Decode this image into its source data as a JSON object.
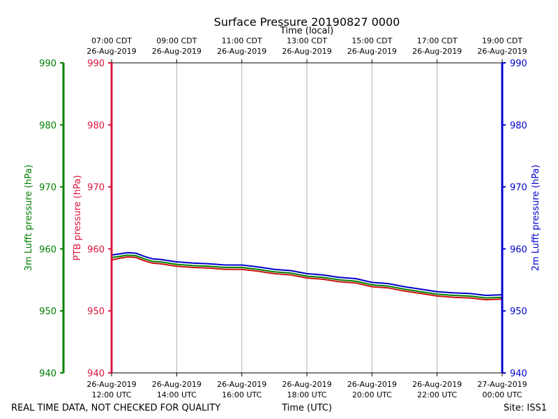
{
  "chart_data": {
    "type": "line",
    "title": "Surface Pressure 20190827 0000",
    "xlabel_bottom": "Time (UTC)",
    "xlabel_top": "Time (local)",
    "ylabel_left_outer": "3m Lufft pressure (hPa)",
    "ylabel_left_inner": "PTB pressure (hPa)",
    "ylabel_right": "2m Lufft pressure (hPa)",
    "ylim": [
      940,
      990
    ],
    "yticks": [
      "990",
      "980",
      "970",
      "960",
      "950",
      "940"
    ],
    "xlim_hours": [
      0,
      12
    ],
    "grid": true,
    "bottom_ticks": [
      {
        "hour": 0,
        "date": "26-Aug-2019",
        "time": "12:00 UTC"
      },
      {
        "hour": 2,
        "date": "26-Aug-2019",
        "time": "14:00 UTC"
      },
      {
        "hour": 4,
        "date": "26-Aug-2019",
        "time": "16:00 UTC"
      },
      {
        "hour": 6,
        "date": "26-Aug-2019",
        "time": "18:00 UTC"
      },
      {
        "hour": 8,
        "date": "26-Aug-2019",
        "time": "20:00 UTC"
      },
      {
        "hour": 10,
        "date": "26-Aug-2019",
        "time": "22:00 UTC"
      },
      {
        "hour": 12,
        "date": "27-Aug-2019",
        "time": "00:00 UTC"
      }
    ],
    "top_ticks": [
      {
        "hour": 0,
        "time": "07:00 CDT",
        "date": "26-Aug-2019"
      },
      {
        "hour": 2,
        "time": "09:00 CDT",
        "date": "26-Aug-2019"
      },
      {
        "hour": 4,
        "time": "11:00 CDT",
        "date": "26-Aug-2019"
      },
      {
        "hour": 6,
        "time": "13:00 CDT",
        "date": "26-Aug-2019"
      },
      {
        "hour": 8,
        "time": "15:00 CDT",
        "date": "26-Aug-2019"
      },
      {
        "hour": 10,
        "time": "17:00 CDT",
        "date": "26-Aug-2019"
      },
      {
        "hour": 12,
        "time": "19:00 CDT",
        "date": "26-Aug-2019"
      }
    ],
    "series": [
      {
        "name": "2m Lufft",
        "color": "#0000cc",
        "x": [
          0,
          0.25,
          0.5,
          0.75,
          1.0,
          1.25,
          1.5,
          1.75,
          2.0,
          2.5,
          3.0,
          3.5,
          4.0,
          4.5,
          5.0,
          5.5,
          6.0,
          6.5,
          7.0,
          7.5,
          8.0,
          8.5,
          9.0,
          9.5,
          10.0,
          10.5,
          11.0,
          11.5,
          12.0
        ],
        "values": [
          959.0,
          959.2,
          959.4,
          959.3,
          958.8,
          958.4,
          958.3,
          958.1,
          957.9,
          957.7,
          957.6,
          957.4,
          957.4,
          957.1,
          956.7,
          956.5,
          956.0,
          955.8,
          955.4,
          955.2,
          954.6,
          954.4,
          953.9,
          953.5,
          953.1,
          952.9,
          952.8,
          952.5,
          952.6
        ]
      },
      {
        "name": "3m Lufft",
        "color": "#008000",
        "x": [
          0,
          0.25,
          0.5,
          0.75,
          1.0,
          1.25,
          1.5,
          1.75,
          2.0,
          2.5,
          3.0,
          3.5,
          4.0,
          4.5,
          5.0,
          5.5,
          6.0,
          6.5,
          7.0,
          7.5,
          8.0,
          8.5,
          9.0,
          9.5,
          10.0,
          10.5,
          11.0,
          11.5,
          12.0
        ],
        "values": [
          958.6,
          958.8,
          959.0,
          958.9,
          958.4,
          958.0,
          957.9,
          957.7,
          957.5,
          957.3,
          957.2,
          957.0,
          957.0,
          956.7,
          956.3,
          956.1,
          955.6,
          955.4,
          955.0,
          954.8,
          954.2,
          954.0,
          953.5,
          953.1,
          952.7,
          952.5,
          952.4,
          952.1,
          952.2
        ]
      },
      {
        "name": "PTB",
        "color": "#cc1111",
        "x": [
          0,
          0.25,
          0.5,
          0.75,
          1.0,
          1.25,
          1.5,
          1.75,
          2.0,
          2.5,
          3.0,
          3.5,
          4.0,
          4.5,
          5.0,
          5.5,
          6.0,
          6.5,
          7.0,
          7.5,
          8.0,
          8.5,
          9.0,
          9.5,
          10.0,
          10.5,
          11.0,
          11.5,
          12.0
        ],
        "values": [
          958.2,
          958.5,
          958.7,
          958.6,
          958.1,
          957.7,
          957.6,
          957.4,
          957.2,
          957.0,
          956.9,
          956.7,
          956.7,
          956.4,
          956.0,
          955.8,
          955.3,
          955.1,
          954.7,
          954.5,
          953.9,
          953.7,
          953.2,
          952.8,
          952.4,
          952.2,
          952.1,
          951.8,
          951.9
        ]
      }
    ],
    "axis_colors": {
      "left_outer": "#008000",
      "left_inner": "#dc143c",
      "right": "#0000cd"
    },
    "footer_left": "REAL TIME DATA, NOT CHECKED FOR QUALITY",
    "footer_right": "Site: ISS1"
  }
}
